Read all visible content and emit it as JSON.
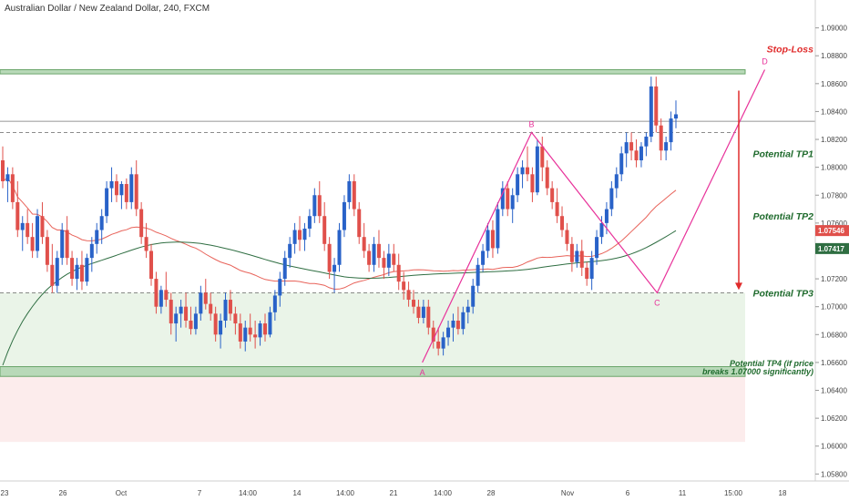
{
  "header": {
    "title": "Australian Dollar / New Zealand Dollar, 240, FXCM"
  },
  "colors": {
    "up": "#2962c8",
    "down": "#e0504b",
    "ma_fast": "#e8635a",
    "ma_slow": "#2f6e42",
    "pattern": "#e8329a",
    "annotation_green": "#1f6b2d",
    "annotation_red": "#e02b2b",
    "zone_support": "#eaf4e8",
    "zone_risk": "#fcecec",
    "band": "#b8d9b8"
  },
  "chart_data": {
    "type": "candlestick",
    "title": "Australian Dollar / New Zealand Dollar, 240, FXCM",
    "price_axis": {
      "ylim": [
        1.0575,
        1.092
      ],
      "ticks": [
        "1.05800",
        "1.06000",
        "1.06200",
        "1.06400",
        "1.06600",
        "1.06800",
        "1.07000",
        "1.07200",
        "1.07400",
        "1.07600",
        "1.07800",
        "1.08000",
        "1.08200",
        "1.08400",
        "1.08600",
        "1.08800",
        "1.09000"
      ]
    },
    "time_axis": {
      "labels": [
        "23",
        "26",
        "Oct",
        "7",
        "14:00",
        "14",
        "14:00",
        "21",
        "14:00",
        "28",
        "Nov",
        "6",
        "11",
        "15:00",
        "18"
      ]
    },
    "price_labels": [
      {
        "value": 1.07546,
        "text": "1.07546",
        "color": "#e0504b"
      },
      {
        "value": 1.07417,
        "text": "1.07417",
        "color": "#2f6e42"
      }
    ],
    "levels": {
      "stop_loss_band": [
        1.0867,
        1.087
      ],
      "horizontal_line": 1.0833,
      "dashed_top": 1.0825,
      "dashed_bottom": 1.071,
      "support_band": [
        1.065,
        1.0657
      ],
      "support_zone": [
        1.0657,
        1.071
      ],
      "risk_zone": [
        1.0603,
        1.065
      ]
    },
    "harmonic_pattern": [
      {
        "label": "A",
        "x": 0.518,
        "y": 1.066
      },
      {
        "label": "B",
        "x": 0.652,
        "y": 1.0825
      },
      {
        "label": "C",
        "x": 0.806,
        "y": 1.071
      },
      {
        "label": "D",
        "x": 0.938,
        "y": 1.087
      }
    ],
    "annotations": [
      {
        "text": "Stop-Loss",
        "color": "#e02b2b",
        "value": 1.0885
      },
      {
        "text": "Potential TP1",
        "color": "#1f6b2d",
        "value": 1.081
      },
      {
        "text": "Potential TP2",
        "color": "#1f6b2d",
        "value": 1.0765
      },
      {
        "text": "Potential TP3",
        "color": "#1f6b2d",
        "value": 1.071
      },
      {
        "text": "Potential TP4 (if price",
        "color": "#1f6b2d",
        "value": 1.066
      },
      {
        "text": "breaks 1.07000 significantly)",
        "color": "#1f6b2d",
        "value": 1.0654
      }
    ],
    "arrow": {
      "from": 1.0855,
      "to": 1.0712
    },
    "ohlc": [
      [
        1.0805,
        1.0815,
        1.0785,
        1.079
      ],
      [
        1.079,
        1.08,
        1.0775,
        1.0795
      ],
      [
        1.0795,
        1.08,
        1.077,
        1.0775
      ],
      [
        1.0775,
        1.079,
        1.075,
        1.0755
      ],
      [
        1.0755,
        1.0765,
        1.074,
        1.076
      ],
      [
        1.076,
        1.077,
        1.0745,
        1.075
      ],
      [
        1.075,
        1.076,
        1.0735,
        1.074
      ],
      [
        1.074,
        1.077,
        1.0735,
        1.0765
      ],
      [
        1.0765,
        1.0775,
        1.0745,
        1.075
      ],
      [
        1.075,
        1.0755,
        1.0725,
        1.073
      ],
      [
        1.073,
        1.0745,
        1.071,
        1.0715
      ],
      [
        1.0715,
        1.074,
        1.071,
        1.0735
      ],
      [
        1.0735,
        1.076,
        1.073,
        1.0755
      ],
      [
        1.0755,
        1.0765,
        1.073,
        1.0735
      ],
      [
        1.0735,
        1.074,
        1.0715,
        1.072
      ],
      [
        1.072,
        1.0735,
        1.0712,
        1.073
      ],
      [
        1.073,
        1.074,
        1.0712,
        1.0718
      ],
      [
        1.0718,
        1.0738,
        1.0715,
        1.0735
      ],
      [
        1.0735,
        1.075,
        1.0725,
        1.0745
      ],
      [
        1.0745,
        1.076,
        1.0738,
        1.0755
      ],
      [
        1.0755,
        1.077,
        1.0745,
        1.0765
      ],
      [
        1.0765,
        1.079,
        1.076,
        1.0785
      ],
      [
        1.0785,
        1.08,
        1.0775,
        1.079
      ],
      [
        1.079,
        1.0795,
        1.0775,
        1.078
      ],
      [
        1.078,
        1.079,
        1.077,
        1.0788
      ],
      [
        1.0788,
        1.0792,
        1.077,
        1.0775
      ],
      [
        1.0775,
        1.08,
        1.077,
        1.0795
      ],
      [
        1.0795,
        1.0805,
        1.0765,
        1.077
      ],
      [
        1.077,
        1.0775,
        1.0745,
        1.075
      ],
      [
        1.075,
        1.076,
        1.0735,
        1.074
      ],
      [
        1.074,
        1.0745,
        1.0715,
        1.072
      ],
      [
        1.072,
        1.0725,
        1.0695,
        1.07
      ],
      [
        1.07,
        1.0715,
        1.0695,
        1.0712
      ],
      [
        1.0712,
        1.0725,
        1.07,
        1.0705
      ],
      [
        1.0705,
        1.071,
        1.068,
        1.0688
      ],
      [
        1.0688,
        1.07,
        1.0675,
        1.0695
      ],
      [
        1.0695,
        1.0705,
        1.0685,
        1.07
      ],
      [
        1.07,
        1.071,
        1.0685,
        1.069
      ],
      [
        1.069,
        1.07,
        1.068,
        1.0684
      ],
      [
        1.0684,
        1.07,
        1.068,
        1.0695
      ],
      [
        1.0695,
        1.0715,
        1.069,
        1.071
      ],
      [
        1.071,
        1.072,
        1.0698,
        1.0702
      ],
      [
        1.0702,
        1.071,
        1.069,
        1.0695
      ],
      [
        1.0695,
        1.07,
        1.0675,
        1.068
      ],
      [
        1.068,
        1.0695,
        1.067,
        1.069
      ],
      [
        1.069,
        1.071,
        1.0685,
        1.0705
      ],
      [
        1.0705,
        1.0712,
        1.069,
        1.0695
      ],
      [
        1.0695,
        1.07,
        1.068,
        1.0688
      ],
      [
        1.0688,
        1.0695,
        1.067,
        1.0675
      ],
      [
        1.0675,
        1.069,
        1.0668,
        1.0685
      ],
      [
        1.0685,
        1.0695,
        1.0675,
        1.068
      ],
      [
        1.068,
        1.069,
        1.067,
        1.0678
      ],
      [
        1.0678,
        1.069,
        1.0672,
        1.0688
      ],
      [
        1.0688,
        1.0695,
        1.0675,
        1.068
      ],
      [
        1.068,
        1.07,
        1.0678,
        1.0696
      ],
      [
        1.0696,
        1.0712,
        1.069,
        1.0708
      ],
      [
        1.0708,
        1.0725,
        1.07,
        1.072
      ],
      [
        1.072,
        1.074,
        1.0715,
        1.0735
      ],
      [
        1.0735,
        1.075,
        1.0728,
        1.0745
      ],
      [
        1.0745,
        1.076,
        1.0738,
        1.0755
      ],
      [
        1.0755,
        1.0765,
        1.074,
        1.0748
      ],
      [
        1.0748,
        1.076,
        1.074,
        1.0756
      ],
      [
        1.0756,
        1.077,
        1.075,
        1.0765
      ],
      [
        1.0765,
        1.0785,
        1.076,
        1.078
      ],
      [
        1.078,
        1.079,
        1.076,
        1.0765
      ],
      [
        1.0765,
        1.0775,
        1.074,
        1.0745
      ],
      [
        1.0745,
        1.075,
        1.072,
        1.0725
      ],
      [
        1.0725,
        1.0735,
        1.071,
        1.073
      ],
      [
        1.073,
        1.076,
        1.0725,
        1.0755
      ],
      [
        1.0755,
        1.078,
        1.075,
        1.0775
      ],
      [
        1.0775,
        1.0795,
        1.077,
        1.079
      ],
      [
        1.079,
        1.0795,
        1.0765,
        1.077
      ],
      [
        1.077,
        1.0775,
        1.0745,
        1.075
      ],
      [
        1.075,
        1.076,
        1.0735,
        1.074
      ],
      [
        1.074,
        1.0745,
        1.0725,
        1.073
      ],
      [
        1.073,
        1.075,
        1.0725,
        1.0745
      ],
      [
        1.0745,
        1.0755,
        1.0728,
        1.0735
      ],
      [
        1.0735,
        1.074,
        1.072,
        1.0728
      ],
      [
        1.0728,
        1.0745,
        1.0722,
        1.0738
      ],
      [
        1.0738,
        1.0745,
        1.0725,
        1.073
      ],
      [
        1.073,
        1.0738,
        1.0712,
        1.0718
      ],
      [
        1.0718,
        1.0725,
        1.0705,
        1.0712
      ],
      [
        1.0712,
        1.0718,
        1.07,
        1.0705
      ],
      [
        1.0705,
        1.0712,
        1.0695,
        1.07
      ],
      [
        1.07,
        1.0705,
        1.0688,
        1.0692
      ],
      [
        1.0692,
        1.0705,
        1.0688,
        1.07
      ],
      [
        1.07,
        1.0705,
        1.068,
        1.0685
      ],
      [
        1.0685,
        1.069,
        1.067,
        1.0675
      ],
      [
        1.0675,
        1.0685,
        1.0665,
        1.067
      ],
      [
        1.067,
        1.0682,
        1.0665,
        1.0678
      ],
      [
        1.0678,
        1.069,
        1.0672,
        1.0685
      ],
      [
        1.0685,
        1.0695,
        1.0675,
        1.069
      ],
      [
        1.069,
        1.07,
        1.068,
        1.0684
      ],
      [
        1.0684,
        1.07,
        1.068,
        1.0696
      ],
      [
        1.0696,
        1.0705,
        1.0688,
        1.07
      ],
      [
        1.07,
        1.072,
        1.0695,
        1.0715
      ],
      [
        1.0715,
        1.0735,
        1.071,
        1.073
      ],
      [
        1.073,
        1.0745,
        1.0725,
        1.074
      ],
      [
        1.074,
        1.076,
        1.0735,
        1.0755
      ],
      [
        1.0755,
        1.0762,
        1.0735,
        1.0742
      ],
      [
        1.0742,
        1.0775,
        1.0738,
        1.077
      ],
      [
        1.077,
        1.079,
        1.0765,
        1.0785
      ],
      [
        1.0785,
        1.079,
        1.0765,
        1.077
      ],
      [
        1.077,
        1.0785,
        1.076,
        1.078
      ],
      [
        1.078,
        1.08,
        1.0775,
        1.0795
      ],
      [
        1.0795,
        1.0805,
        1.0785,
        1.08
      ],
      [
        1.08,
        1.0815,
        1.079,
        1.0795
      ],
      [
        1.0795,
        1.08,
        1.0775,
        1.0782
      ],
      [
        1.0782,
        1.082,
        1.078,
        1.0815
      ],
      [
        1.0815,
        1.0822,
        1.079,
        1.08
      ],
      [
        1.08,
        1.0805,
        1.078,
        1.0785
      ],
      [
        1.0785,
        1.079,
        1.077,
        1.0775
      ],
      [
        1.0775,
        1.0785,
        1.076,
        1.0765
      ],
      [
        1.0765,
        1.0772,
        1.075,
        1.0755
      ],
      [
        1.0755,
        1.076,
        1.074,
        1.0745
      ],
      [
        1.0745,
        1.075,
        1.0725,
        1.0732
      ],
      [
        1.0732,
        1.0745,
        1.0728,
        1.074
      ],
      [
        1.074,
        1.0748,
        1.0722,
        1.0728
      ],
      [
        1.0728,
        1.0732,
        1.0715,
        1.072
      ],
      [
        1.072,
        1.074,
        1.0712,
        1.0735
      ],
      [
        1.0735,
        1.0755,
        1.073,
        1.075
      ],
      [
        1.075,
        1.0765,
        1.0745,
        1.076
      ],
      [
        1.076,
        1.0775,
        1.0752,
        1.077
      ],
      [
        1.077,
        1.079,
        1.0765,
        1.0785
      ],
      [
        1.0785,
        1.08,
        1.0778,
        1.0795
      ],
      [
        1.0795,
        1.0815,
        1.079,
        1.081
      ],
      [
        1.081,
        1.0825,
        1.08,
        1.0818
      ],
      [
        1.0818,
        1.0825,
        1.0805,
        1.0812
      ],
      [
        1.0812,
        1.082,
        1.08,
        1.0805
      ],
      [
        1.0805,
        1.0818,
        1.08,
        1.0815
      ],
      [
        1.0815,
        1.0825,
        1.0808,
        1.0822
      ],
      [
        1.0822,
        1.0865,
        1.0818,
        1.0858
      ],
      [
        1.0858,
        1.0865,
        1.0825,
        1.083
      ],
      [
        1.083,
        1.0835,
        1.0805,
        1.0812
      ],
      [
        1.0812,
        1.0822,
        1.0805,
        1.0818
      ],
      [
        1.0818,
        1.084,
        1.0812,
        1.0835
      ],
      [
        1.0835,
        1.0848,
        1.0828,
        1.0838
      ]
    ]
  }
}
